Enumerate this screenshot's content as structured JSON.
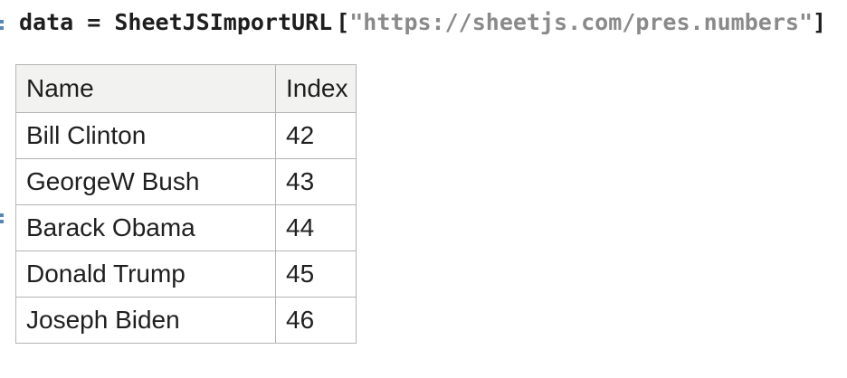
{
  "theme": {
    "background": "#ffffff",
    "code_text": "#1e1e1e",
    "code_string": "#8a8a8a",
    "label_blue": "#5c86ad",
    "table_border": "#b4b4b4",
    "table_header_bg": "#f2f2f1",
    "table_text": "#1f1f1f"
  },
  "code_cell": {
    "prefix": "data = SheetJSImportURL",
    "open_bracket": "[",
    "url_string": "\"https://sheetjs.com/pres.numbers\"",
    "close_bracket": "]"
  },
  "output_table": {
    "headers": [
      "Name",
      "Index"
    ],
    "rows": [
      {
        "name": "Bill Clinton",
        "index": "42"
      },
      {
        "name": "GeorgeW Bush",
        "index": "43"
      },
      {
        "name": "Barack Obama",
        "index": "44"
      },
      {
        "name": "Donald Trump",
        "index": "45"
      },
      {
        "name": "Joseph Biden",
        "index": "46"
      }
    ]
  }
}
